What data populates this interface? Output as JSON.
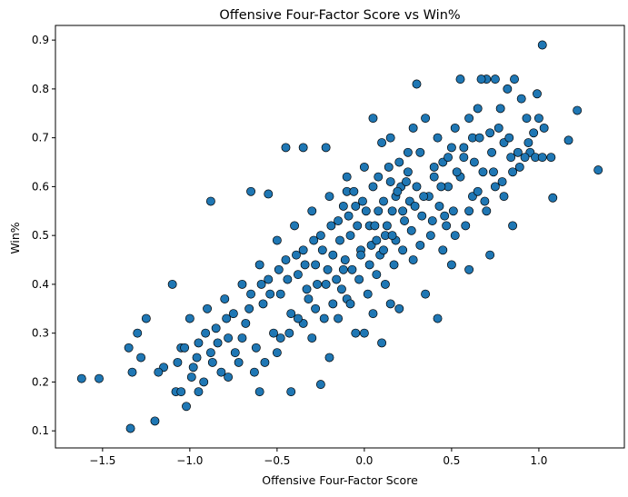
{
  "chart_data": {
    "type": "scatter",
    "title": "Offensive Four-Factor Score vs Win%",
    "xlabel": "Offensive Four-Factor Score",
    "ylabel": "Win%",
    "xlim": [
      -1.77,
      1.49
    ],
    "ylim": [
      0.065,
      0.93
    ],
    "xticks": [
      -1.5,
      -1.0,
      -0.5,
      0.0,
      0.5,
      1.0
    ],
    "xtick_labels": [
      "−1.5",
      "−1.0",
      "−0.5",
      "0.0",
      "0.5",
      "1.0"
    ],
    "yticks": [
      0.1,
      0.2,
      0.3,
      0.4,
      0.5,
      0.6,
      0.7,
      0.8,
      0.9
    ],
    "ytick_labels": [
      "0.1",
      "0.2",
      "0.3",
      "0.4",
      "0.5",
      "0.6",
      "0.7",
      "0.8",
      "0.9"
    ],
    "grid": false,
    "marker_color": "#1f77b4",
    "marker_edge_color": "#000000",
    "points": [
      [
        1.02,
        0.89
      ],
      [
        1.34,
        0.634
      ],
      [
        1.22,
        0.756
      ],
      [
        1.17,
        0.695
      ],
      [
        1.08,
        0.577
      ],
      [
        1.07,
        0.66
      ],
      [
        1.03,
        0.72
      ],
      [
        0.99,
        0.79
      ],
      [
        0.95,
        0.67
      ],
      [
        0.93,
        0.74
      ],
      [
        0.9,
        0.78
      ],
      [
        0.86,
        0.82
      ],
      [
        0.82,
        0.8
      ],
      [
        0.78,
        0.76
      ],
      [
        0.75,
        0.82
      ],
      [
        0.72,
        0.71
      ],
      [
        0.7,
        0.82
      ],
      [
        0.67,
        0.82
      ],
      [
        0.65,
        0.76
      ],
      [
        0.62,
        0.7
      ],
      [
        0.6,
        0.74
      ],
      [
        0.57,
        0.66
      ],
      [
        0.55,
        0.82
      ],
      [
        0.52,
        0.72
      ],
      [
        0.5,
        0.68
      ],
      [
        0.48,
        0.6
      ],
      [
        0.45,
        0.65
      ],
      [
        0.42,
        0.7
      ],
      [
        0.4,
        0.62
      ],
      [
        0.37,
        0.58
      ],
      [
        0.35,
        0.74
      ],
      [
        0.32,
        0.67
      ],
      [
        0.3,
        0.81
      ],
      [
        0.28,
        0.72
      ],
      [
        0.25,
        0.63
      ],
      [
        0.22,
        0.55
      ],
      [
        0.2,
        0.65
      ],
      [
        0.18,
        0.58
      ],
      [
        0.15,
        0.61
      ],
      [
        0.12,
        0.5
      ],
      [
        0.1,
        0.69
      ],
      [
        0.08,
        0.55
      ],
      [
        0.05,
        0.6
      ],
      [
        0.03,
        0.52
      ],
      [
        0.0,
        0.64
      ],
      [
        -0.02,
        0.47
      ],
      [
        -0.05,
        0.56
      ],
      [
        -0.08,
        0.5
      ],
      [
        -0.1,
        0.59
      ],
      [
        -0.12,
        0.43
      ],
      [
        -0.15,
        0.53
      ],
      [
        -0.18,
        0.46
      ],
      [
        -0.2,
        0.58
      ],
      [
        -0.22,
        0.4
      ],
      [
        -0.25,
        0.5
      ],
      [
        -0.28,
        0.44
      ],
      [
        -0.3,
        0.55
      ],
      [
        -0.32,
        0.37
      ],
      [
        -0.35,
        0.47
      ],
      [
        -0.38,
        0.42
      ],
      [
        -0.4,
        0.52
      ],
      [
        -0.42,
        0.34
      ],
      [
        -0.45,
        0.45
      ],
      [
        -0.48,
        0.38
      ],
      [
        -0.5,
        0.49
      ],
      [
        -0.52,
        0.3
      ],
      [
        -0.55,
        0.41
      ],
      [
        -0.58,
        0.36
      ],
      [
        -0.6,
        0.44
      ],
      [
        -0.62,
        0.27
      ],
      [
        -0.65,
        0.38
      ],
      [
        -0.68,
        0.32
      ],
      [
        -0.7,
        0.4
      ],
      [
        -0.72,
        0.24
      ],
      [
        -0.75,
        0.34
      ],
      [
        -0.78,
        0.29
      ],
      [
        -0.8,
        0.37
      ],
      [
        -0.82,
        0.22
      ],
      [
        -0.85,
        0.31
      ],
      [
        -0.88,
        0.26
      ],
      [
        -0.9,
        0.35
      ],
      [
        -0.92,
        0.2
      ],
      [
        -0.95,
        0.28
      ],
      [
        -0.98,
        0.23
      ],
      [
        -1.0,
        0.33
      ],
      [
        -1.02,
        0.15
      ],
      [
        -1.05,
        0.27
      ],
      [
        -1.08,
        0.18
      ],
      [
        -1.1,
        0.4
      ],
      [
        -1.15,
        0.23
      ],
      [
        -1.2,
        0.12
      ],
      [
        -1.25,
        0.33
      ],
      [
        -1.3,
        0.3
      ],
      [
        -1.33,
        0.22
      ],
      [
        -1.34,
        0.105
      ],
      [
        -1.35,
        0.27
      ],
      [
        -1.52,
        0.207
      ],
      [
        -1.62,
        0.207
      ],
      [
        -1.28,
        0.25
      ],
      [
        -1.18,
        0.22
      ],
      [
        -0.88,
        0.57
      ],
      [
        -0.65,
        0.59
      ],
      [
        -0.55,
        0.585
      ],
      [
        -0.45,
        0.68
      ],
      [
        -0.35,
        0.68
      ],
      [
        -0.22,
        0.68
      ],
      [
        -0.1,
        0.62
      ],
      [
        0.05,
        0.74
      ],
      [
        0.15,
        0.7
      ],
      [
        0.25,
        0.67
      ],
      [
        0.45,
        0.47
      ],
      [
        0.5,
        0.44
      ],
      [
        0.6,
        0.43
      ],
      [
        0.72,
        0.46
      ],
      [
        0.85,
        0.52
      ],
      [
        0.92,
        0.66
      ],
      [
        0.98,
        0.66
      ],
      [
        1.02,
        0.66
      ],
      [
        0.88,
        0.67
      ],
      [
        0.8,
        0.69
      ],
      [
        0.35,
        0.38
      ],
      [
        0.42,
        0.33
      ],
      [
        -0.25,
        0.195
      ],
      [
        -0.42,
        0.18
      ],
      [
        -0.6,
        0.18
      ],
      [
        -0.78,
        0.21
      ],
      [
        -0.95,
        0.18
      ],
      [
        -1.05,
        0.18
      ],
      [
        -0.2,
        0.25
      ],
      [
        0.0,
        0.3
      ],
      [
        0.1,
        0.28
      ],
      [
        -0.05,
        0.3
      ],
      [
        -0.15,
        0.33
      ],
      [
        0.2,
        0.35
      ],
      [
        0.15,
        0.36
      ],
      [
        -0.3,
        0.29
      ],
      [
        -0.35,
        0.32
      ],
      [
        -0.1,
        0.37
      ],
      [
        0.05,
        0.34
      ],
      [
        -0.48,
        0.29
      ],
      [
        0.55,
        0.62
      ],
      [
        0.62,
        0.58
      ],
      [
        0.68,
        0.63
      ],
      [
        0.75,
        0.6
      ],
      [
        0.8,
        0.58
      ],
      [
        0.85,
        0.63
      ],
      [
        0.7,
        0.55
      ],
      [
        0.58,
        0.52
      ],
      [
        0.52,
        0.5
      ],
      [
        0.46,
        0.54
      ],
      [
        0.38,
        0.5
      ],
      [
        0.33,
        0.54
      ],
      [
        0.27,
        0.51
      ],
      [
        0.22,
        0.47
      ],
      [
        0.17,
        0.44
      ],
      [
        0.12,
        0.4
      ],
      [
        0.07,
        0.42
      ],
      [
        0.02,
        0.38
      ],
      [
        -0.03,
        0.41
      ],
      [
        -0.08,
        0.36
      ],
      [
        -0.13,
        0.39
      ],
      [
        -0.18,
        0.36
      ],
      [
        -0.23,
        0.33
      ],
      [
        -0.28,
        0.35
      ],
      [
        -0.33,
        0.39
      ],
      [
        -0.38,
        0.33
      ],
      [
        -0.43,
        0.3
      ],
      [
        -0.5,
        0.26
      ],
      [
        -0.57,
        0.24
      ],
      [
        -0.63,
        0.22
      ],
      [
        0.3,
        0.6
      ],
      [
        0.26,
        0.57
      ],
      [
        0.21,
        0.6
      ],
      [
        0.16,
        0.55
      ],
      [
        0.11,
        0.57
      ],
      [
        0.06,
        0.52
      ],
      [
        0.01,
        0.55
      ],
      [
        -0.04,
        0.52
      ],
      [
        -0.09,
        0.54
      ],
      [
        -0.14,
        0.49
      ],
      [
        -0.19,
        0.52
      ],
      [
        -0.24,
        0.47
      ],
      [
        -0.29,
        0.49
      ],
      [
        -0.34,
        0.44
      ],
      [
        -0.39,
        0.46
      ],
      [
        -0.44,
        0.41
      ],
      [
        -0.49,
        0.43
      ],
      [
        -0.54,
        0.38
      ],
      [
        -0.59,
        0.4
      ],
      [
        -0.66,
        0.35
      ],
      [
        0.4,
        0.64
      ],
      [
        0.44,
        0.6
      ],
      [
        0.48,
        0.66
      ],
      [
        0.53,
        0.63
      ],
      [
        0.57,
        0.68
      ],
      [
        0.63,
        0.65
      ],
      [
        0.66,
        0.7
      ],
      [
        0.73,
        0.67
      ],
      [
        0.77,
        0.72
      ],
      [
        0.83,
        0.7
      ],
      [
        0.08,
        0.62
      ],
      [
        0.14,
        0.64
      ],
      [
        0.19,
        0.59
      ],
      [
        0.24,
        0.61
      ],
      [
        0.29,
        0.56
      ],
      [
        0.34,
        0.58
      ],
      [
        0.39,
        0.53
      ],
      [
        0.43,
        0.56
      ],
      [
        0.47,
        0.52
      ],
      [
        0.51,
        0.55
      ],
      [
        -0.12,
        0.56
      ],
      [
        -0.06,
        0.59
      ],
      [
        -0.01,
        0.57
      ],
      [
        0.04,
        0.48
      ],
      [
        0.09,
        0.46
      ],
      [
        0.13,
        0.52
      ],
      [
        0.18,
        0.49
      ],
      [
        0.23,
        0.53
      ],
      [
        0.28,
        0.45
      ],
      [
        0.32,
        0.48
      ],
      [
        -0.7,
        0.29
      ],
      [
        -0.74,
        0.26
      ],
      [
        -0.79,
        0.33
      ],
      [
        -0.84,
        0.28
      ],
      [
        -0.87,
        0.24
      ],
      [
        -0.91,
        0.3
      ],
      [
        -0.96,
        0.25
      ],
      [
        -0.99,
        0.21
      ],
      [
        -1.03,
        0.27
      ],
      [
        -1.07,
        0.24
      ],
      [
        -0.27,
        0.4
      ],
      [
        -0.21,
        0.43
      ],
      [
        -0.16,
        0.41
      ],
      [
        -0.11,
        0.45
      ],
      [
        -0.07,
        0.43
      ],
      [
        -0.02,
        0.46
      ],
      [
        0.03,
        0.44
      ],
      [
        0.07,
        0.49
      ],
      [
        0.11,
        0.47
      ],
      [
        0.16,
        0.5
      ],
      [
        0.6,
        0.55
      ],
      [
        0.65,
        0.59
      ],
      [
        0.69,
        0.57
      ],
      [
        0.74,
        0.63
      ],
      [
        0.79,
        0.61
      ],
      [
        0.84,
        0.66
      ],
      [
        0.89,
        0.64
      ],
      [
        0.94,
        0.69
      ],
      [
        0.97,
        0.71
      ],
      [
        1.0,
        0.74
      ]
    ]
  }
}
